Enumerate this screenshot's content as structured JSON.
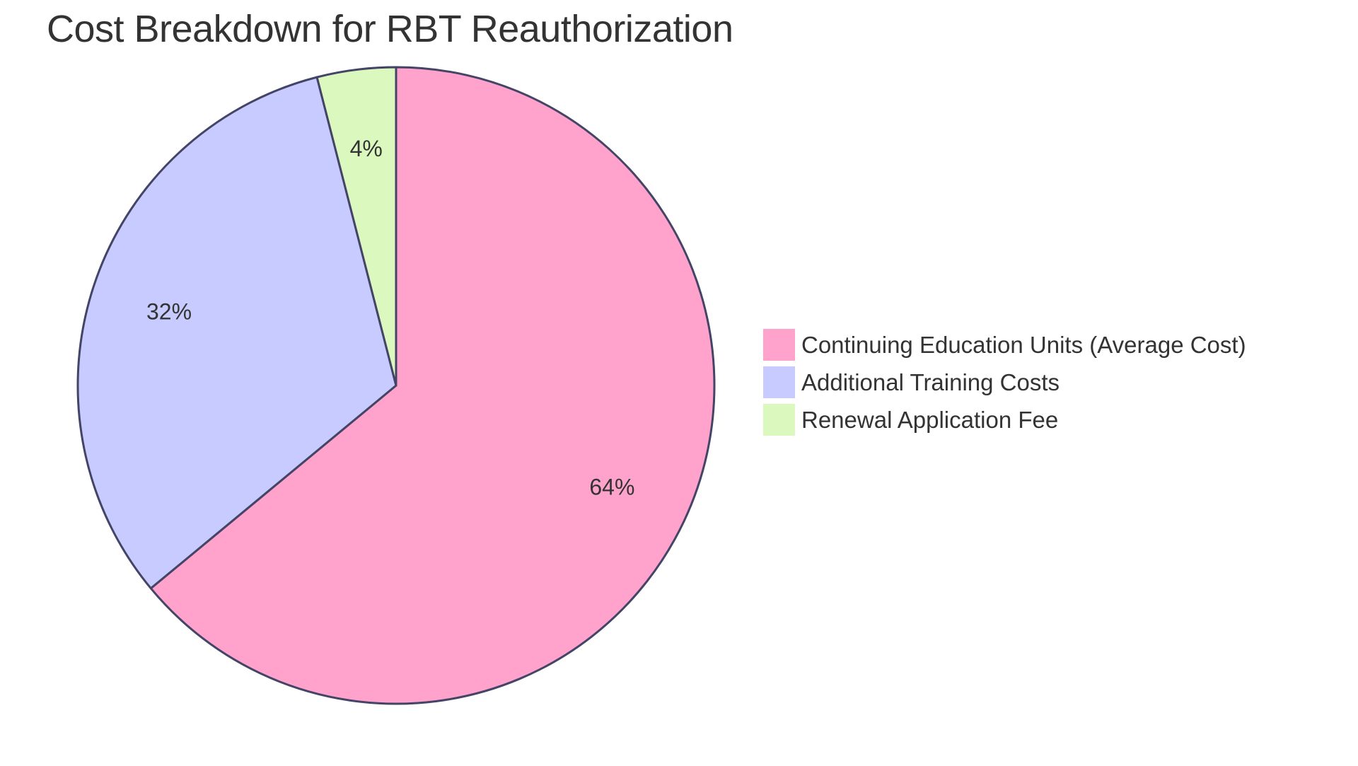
{
  "chart_data": {
    "type": "pie",
    "title": "Cost Breakdown for RBT Reauthorization",
    "slices": [
      {
        "label": "Continuing Education Units (Average Cost)",
        "value": 64,
        "display": "64%",
        "color": "#FFA3CC"
      },
      {
        "label": "Additional Training Costs",
        "value": 32,
        "display": "32%",
        "color": "#C8CBFF"
      },
      {
        "label": "Renewal Application Fee",
        "value": 4,
        "display": "4%",
        "color": "#DBF9BF"
      }
    ],
    "legend": {
      "placement": "right",
      "items": [
        "Continuing Education Units (Average Cost)",
        "Additional Training Costs",
        "Renewal Application Fee"
      ]
    },
    "stroke_color": "#444466"
  }
}
